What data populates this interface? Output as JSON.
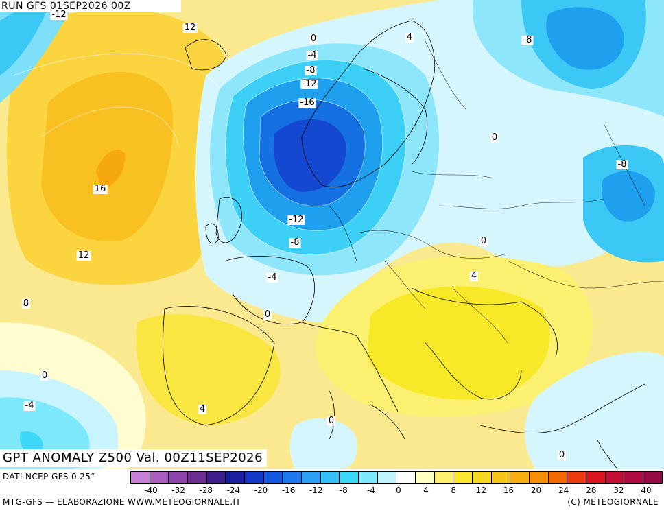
{
  "header": {
    "run": "RUN GFS 01SEP2026 00Z"
  },
  "footer_title": "GPT ANOMALY Z500 Val. 00Z11SEP2026",
  "source": "DATI NCEP GFS 0.25°",
  "credit": "MTG-GFS — ELABORAZIONE WWW.METEOGIORNALE.IT",
  "copyright": "(C) METEOGIORNALE",
  "legend": {
    "ticks": [
      "-40",
      "-32",
      "-28",
      "-24",
      "-20",
      "-16",
      "-12",
      "-8",
      "-4",
      "0",
      "4",
      "8",
      "12",
      "16",
      "20",
      "24",
      "28",
      "32",
      "40"
    ],
    "colors": [
      "#c77fd6",
      "#a95ec0",
      "#8e45a9",
      "#6b2f92",
      "#3d1e8a",
      "#1a1fa0",
      "#1238c8",
      "#1558e0",
      "#1e78ee",
      "#2ca0f5",
      "#35c0f8",
      "#3dd8f8",
      "#7ee8fb",
      "#c0f4fd",
      "#ffffff",
      "#ffffc0",
      "#fff070",
      "#fae630",
      "#f5d820",
      "#f6c418",
      "#f7ad10",
      "#f69008",
      "#f26a04",
      "#ec3a10",
      "#d8141e",
      "#c40e36",
      "#b00c44",
      "#960a46"
    ]
  },
  "contour_labels": [
    {
      "text": "-12"
    },
    {
      "text": "12"
    },
    {
      "text": "0"
    },
    {
      "text": "-4"
    },
    {
      "text": "-8"
    },
    {
      "text": "-12"
    },
    {
      "text": "-16"
    },
    {
      "text": "4"
    },
    {
      "text": "-8"
    },
    {
      "text": "0"
    },
    {
      "text": "-8"
    },
    {
      "text": "16"
    },
    {
      "text": "-12"
    },
    {
      "text": "-8"
    },
    {
      "text": "12"
    },
    {
      "text": "0"
    },
    {
      "text": "-4"
    },
    {
      "text": "4"
    },
    {
      "text": "8"
    },
    {
      "text": "0"
    },
    {
      "text": "0"
    },
    {
      "text": "-4"
    },
    {
      "text": "4"
    },
    {
      "text": "0"
    },
    {
      "text": "0"
    }
  ]
}
